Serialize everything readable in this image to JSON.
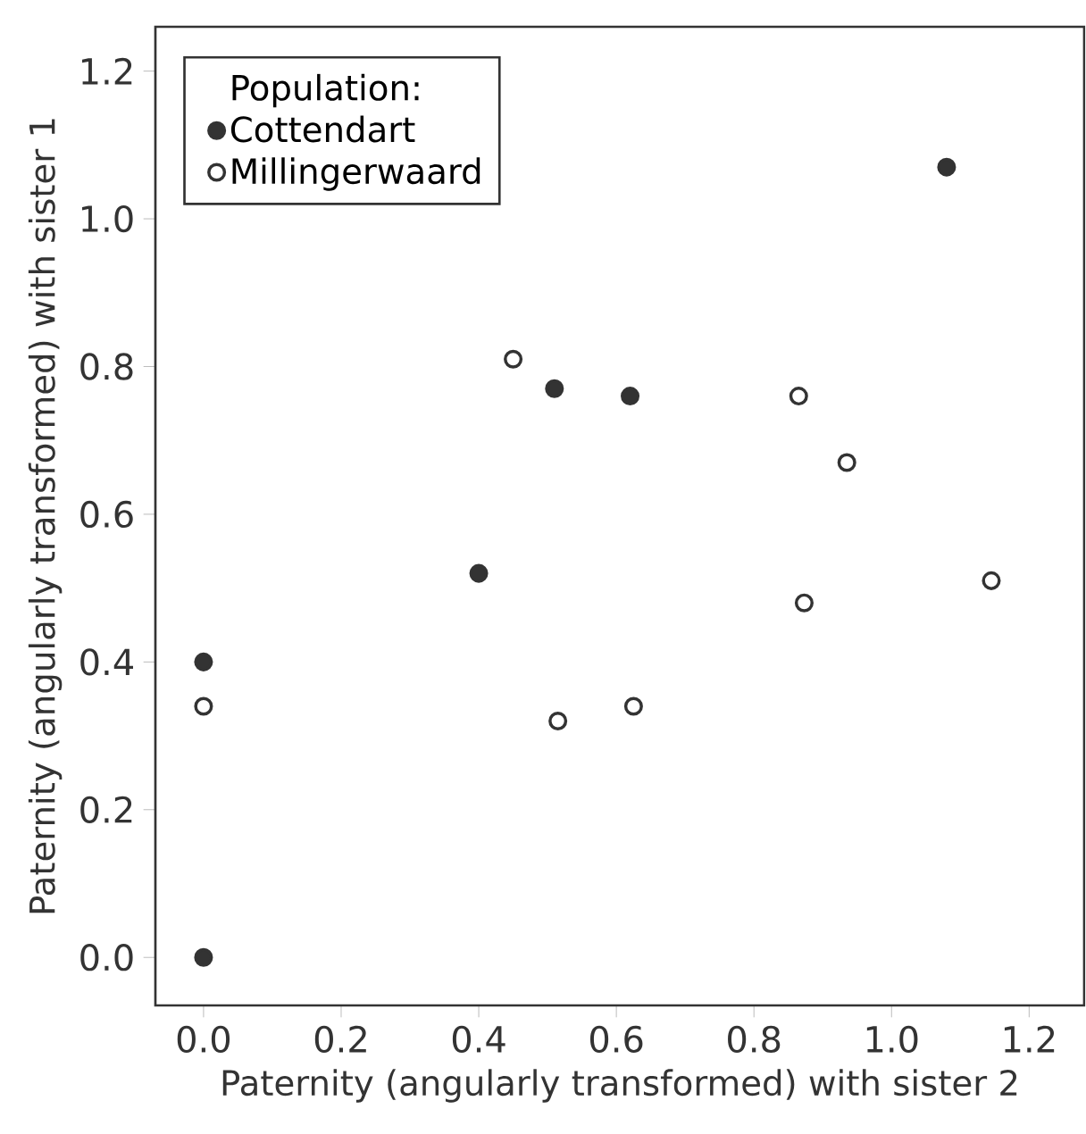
{
  "chart_data": {
    "type": "scatter",
    "xlabel": "Paternity (angularly transformed) with sister 2",
    "ylabel": "Paternity (angularly transformed) with sister 1",
    "legend_title": "Population:",
    "series": [
      {
        "name": "Cottendart",
        "color": "#333333",
        "x": [
          1.08,
          0.51,
          0.62,
          0.4,
          0.0,
          0.0
        ],
        "values": [
          1.07,
          0.77,
          0.76,
          0.52,
          0.4,
          0.0
        ]
      },
      {
        "name": "Millingerwaard",
        "color": "#ffffff",
        "x": [
          0.45,
          0.865,
          0.935,
          1.145,
          0.873,
          0.0,
          0.515,
          0.625
        ],
        "values": [
          0.81,
          0.76,
          0.67,
          0.51,
          0.48,
          0.34,
          0.32,
          0.34
        ]
      }
    ],
    "xlim": [
      -0.07,
      1.28
    ],
    "ylim": [
      -0.065,
      1.26
    ],
    "xticks": [
      {
        "value": 0,
        "label": "0.0"
      },
      0.2,
      0.4,
      0.6,
      0.8,
      {
        "value": 1,
        "label": "1.0"
      },
      1.2
    ],
    "yticks": [
      {
        "value": 0,
        "label": "0.0"
      },
      0.2,
      0.4,
      0.6,
      0.8,
      {
        "value": 1,
        "label": "1.0"
      },
      1.2
    ],
    "grid": false,
    "legend": "top left",
    "marker": "circle"
  }
}
